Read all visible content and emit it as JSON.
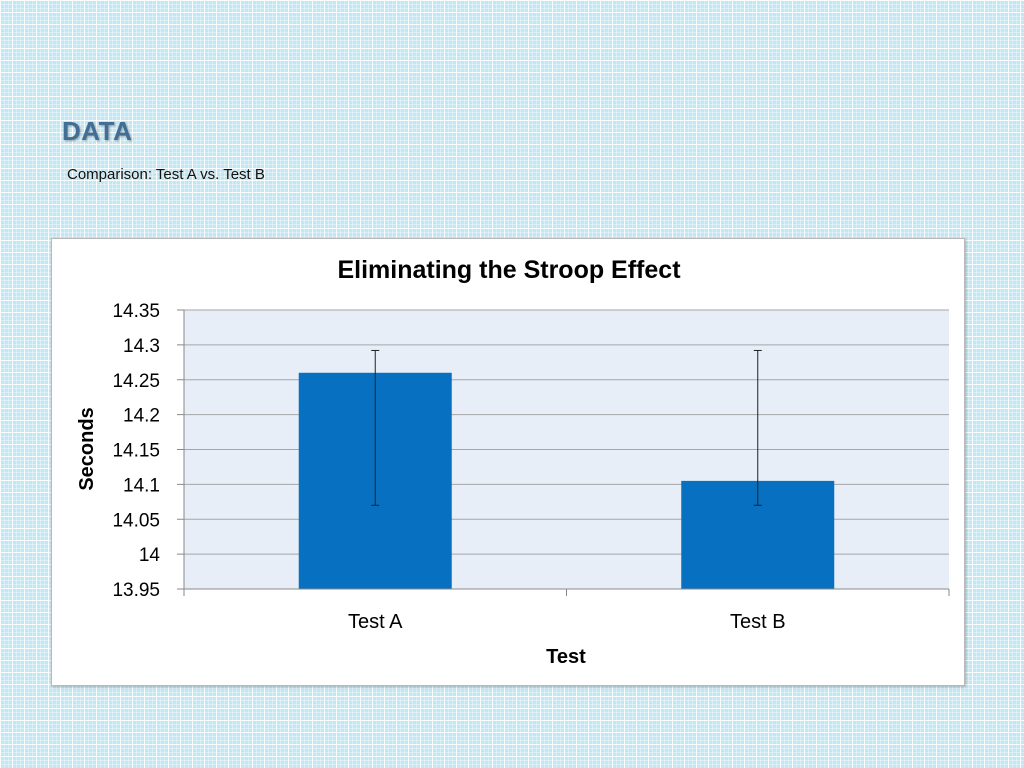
{
  "slide": {
    "title": "DATA",
    "subtitle": "Comparison: Test A vs. Test B"
  },
  "chart_data": {
    "type": "bar",
    "title": "Eliminating the Stroop Effect",
    "xlabel": "Test",
    "ylabel": "Seconds",
    "categories": [
      "Test A",
      "Test B"
    ],
    "values": [
      14.26,
      14.105
    ],
    "error_bars": [
      {
        "low": 14.07,
        "high": 14.292
      },
      {
        "low": 14.07,
        "high": 14.292
      }
    ],
    "ylim": [
      13.95,
      14.35
    ],
    "yticks": [
      13.95,
      14,
      14.05,
      14.1,
      14.15,
      14.2,
      14.25,
      14.3,
      14.35
    ],
    "ytick_labels": [
      "13.95",
      "14",
      "14.05",
      "14.1",
      "14.15",
      "14.2",
      "14.25",
      "14.3",
      "14.35"
    ],
    "grid": true,
    "legend": "none",
    "colors": {
      "bar": "#0870c0",
      "plot_background": "#e7eef8",
      "gridline": "#a6a6a6",
      "error_bar": "#222222"
    }
  }
}
